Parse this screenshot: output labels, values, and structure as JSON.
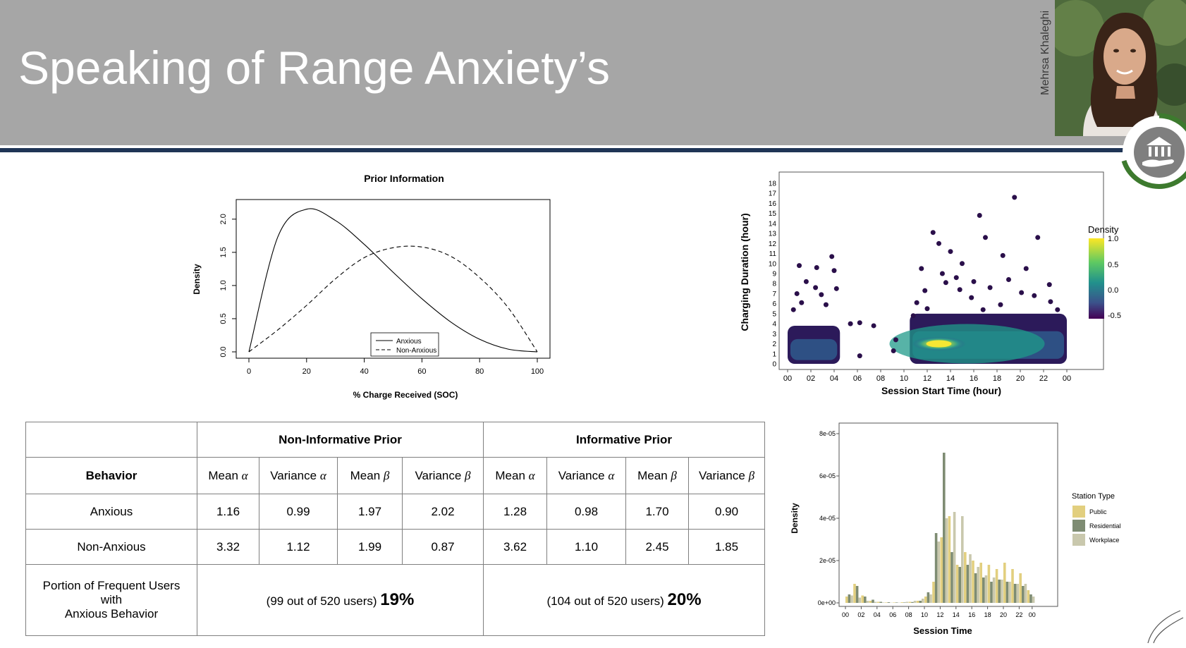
{
  "slide": {
    "title": "Speaking of Range Anxiety’s",
    "presenter_name": "Mehrsa Khaleghi"
  },
  "prior_chart": {
    "title": "Prior Information",
    "xlabel": "% Charge Received (SOC)",
    "ylabel": "Density",
    "x_ticks": [
      "0",
      "20",
      "40",
      "60",
      "80",
      "100"
    ],
    "y_ticks": [
      "0.0",
      "0.5",
      "1.0",
      "1.5",
      "2.0"
    ],
    "legend": [
      "Anxious",
      "Non-Anxious"
    ]
  },
  "scatter_chart": {
    "xlabel": "Session Start Time (hour)",
    "ylabel": "Charging Duration (hour)",
    "x_ticks": [
      "00",
      "02",
      "04",
      "06",
      "08",
      "10",
      "12",
      "14",
      "16",
      "18",
      "20",
      "22",
      "00"
    ],
    "y_ticks": [
      "0",
      "1",
      "2",
      "3",
      "4",
      "5",
      "6",
      "7",
      "8",
      "9",
      "10",
      "11",
      "12",
      "13",
      "14",
      "15",
      "16",
      "17",
      "18"
    ],
    "legend_title": "Density",
    "legend_ticks": [
      "1.0",
      "0.5",
      "0.0",
      "-0.5"
    ]
  },
  "hist_chart": {
    "xlabel": "Session Time",
    "ylabel": "Density",
    "x_ticks": [
      "00",
      "02",
      "04",
      "06",
      "08",
      "10",
      "12",
      "14",
      "16",
      "18",
      "20",
      "22",
      "00"
    ],
    "y_ticks": [
      "0e+00",
      "2e-05",
      "4e-05",
      "6e-05",
      "8e-05"
    ],
    "legend_title": "Station Type",
    "legend": [
      "Public",
      "Residential",
      "Workplace"
    ],
    "colors": {
      "Public": "#e2cf7f",
      "Residential": "#7e8c73",
      "Workplace": "#c9c8ad"
    }
  },
  "chart_data": [
    {
      "type": "line",
      "x": [
        0,
        10,
        20,
        30,
        40,
        50,
        60,
        70,
        80,
        90,
        100
      ],
      "series": [
        {
          "name": "Anxious",
          "values": [
            0,
            1.73,
            2.15,
            1.98,
            1.62,
            1.2,
            0.8,
            0.45,
            0.19,
            0.04,
            0
          ]
        },
        {
          "name": "Non-Anxious",
          "values": [
            0,
            0.33,
            0.7,
            1.1,
            1.42,
            1.57,
            1.58,
            1.44,
            1.12,
            0.66,
            0
          ]
        }
      ],
      "title": "Prior Information",
      "xlabel": "% Charge Received (SOC)",
      "ylabel": "Density",
      "xlim": [
        0,
        100
      ],
      "ylim": [
        0,
        2.2
      ],
      "grid": false,
      "legend_position": "bottom-center"
    },
    {
      "type": "scatter",
      "points": [
        [
          19.5,
          16.6
        ],
        [
          16.5,
          14.8
        ],
        [
          12.5,
          13.1
        ],
        [
          17.0,
          12.6
        ],
        [
          21.5,
          12.6
        ],
        [
          14.0,
          11.2
        ],
        [
          13.0,
          12.0
        ],
        [
          18.5,
          10.8
        ],
        [
          20.5,
          9.5
        ],
        [
          15.0,
          10.0
        ],
        [
          11.5,
          9.5
        ],
        [
          1.0,
          9.8
        ],
        [
          2.5,
          9.6
        ],
        [
          4.0,
          9.3
        ],
        [
          3.8,
          10.7
        ],
        [
          14.5,
          8.6
        ],
        [
          16.0,
          8.2
        ],
        [
          19.0,
          8.4
        ],
        [
          22.5,
          7.9
        ],
        [
          13.3,
          9.0
        ],
        [
          1.6,
          8.2
        ],
        [
          2.4,
          7.6
        ],
        [
          0.8,
          7.0
        ],
        [
          2.9,
          6.9
        ],
        [
          3.3,
          5.9
        ],
        [
          1.2,
          6.1
        ],
        [
          0.5,
          5.4
        ],
        [
          4.2,
          7.5
        ],
        [
          6.2,
          4.1
        ],
        [
          7.4,
          3.8
        ],
        [
          5.4,
          4.0
        ],
        [
          9.3,
          2.4
        ],
        [
          9.1,
          1.3
        ],
        [
          6.2,
          0.8
        ],
        [
          11.1,
          6.1
        ],
        [
          11.8,
          7.3
        ],
        [
          10.8,
          4.8
        ],
        [
          17.4,
          7.6
        ],
        [
          21.2,
          6.8
        ],
        [
          23.2,
          5.4
        ],
        [
          12.0,
          5.5
        ],
        [
          15.8,
          6.6
        ],
        [
          18.3,
          5.9
        ],
        [
          20.1,
          7.1
        ],
        [
          22.6,
          6.2
        ],
        [
          14.8,
          7.4
        ],
        [
          13.6,
          8.1
        ],
        [
          16.8,
          5.4
        ]
      ],
      "density_bands": [
        {
          "x_range": [
            0,
            4.5
          ],
          "y_range": [
            0,
            3.8
          ]
        },
        {
          "x_range": [
            10.5,
            24
          ],
          "y_range": [
            0,
            5.0
          ]
        }
      ],
      "hotspot": {
        "x": 13.0,
        "y": 2.0
      },
      "xlabel": "Session Start Time (hour)",
      "ylabel": "Charging Duration (hour)",
      "xlim": [
        0,
        24
      ],
      "ylim": [
        0,
        18
      ],
      "legend_position": "right",
      "colorscale": "viridis",
      "colorbar_range": [
        -0.5,
        1.0
      ]
    },
    {
      "type": "bar",
      "categories": [
        "00",
        "01",
        "02",
        "03",
        "04",
        "05",
        "06",
        "07",
        "08",
        "09",
        "10",
        "11",
        "12",
        "13",
        "14",
        "15",
        "16",
        "17",
        "18",
        "19",
        "20",
        "21",
        "22",
        "23"
      ],
      "series": [
        {
          "name": "Public",
          "values": [
            0.3,
            0.9,
            0.35,
            0.1,
            0.05,
            0.02,
            0.02,
            0.03,
            0.05,
            0.1,
            0.3,
            1.0,
            3.1,
            4.1,
            1.8,
            2.4,
            2.0,
            1.9,
            1.8,
            1.6,
            1.9,
            1.6,
            1.4,
            0.6
          ]
        },
        {
          "name": "Residential",
          "values": [
            0.4,
            0.8,
            0.3,
            0.15,
            0.05,
            0.03,
            0.02,
            0.02,
            0.04,
            0.1,
            0.5,
            3.3,
            7.1,
            2.4,
            1.7,
            1.8,
            1.4,
            1.2,
            1.0,
            1.1,
            1.0,
            0.9,
            0.8,
            0.4
          ]
        },
        {
          "name": "Workplace",
          "values": [
            0.35,
            0.25,
            0.1,
            0.05,
            0.02,
            0.01,
            0.01,
            0.05,
            0.1,
            0.2,
            0.4,
            2.9,
            4.0,
            4.3,
            4.1,
            2.3,
            1.7,
            1.3,
            1.2,
            1.1,
            1.0,
            0.9,
            0.9,
            0.3
          ]
        }
      ],
      "value_scale": "1e-05",
      "xlabel": "Session Time",
      "ylabel": "Density",
      "ylim": [
        0,
        8
      ],
      "legend_position": "right"
    }
  ],
  "table": {
    "group_headers": [
      "Non-Informative Prior",
      "Informative Prior"
    ],
    "behavior_header": "Behavior",
    "sub_headers": [
      {
        "label": "Mean",
        "symbol": "α"
      },
      {
        "label": "Variance",
        "symbol": "α"
      },
      {
        "label": "Mean",
        "symbol": "β"
      },
      {
        "label": "Variance",
        "symbol": "β"
      },
      {
        "label": "Mean",
        "symbol": "α"
      },
      {
        "label": "Variance",
        "symbol": "α"
      },
      {
        "label": "Mean",
        "symbol": "β"
      },
      {
        "label": "Variance",
        "symbol": "β"
      }
    ],
    "rows": [
      {
        "label": "Anxious",
        "values": [
          "1.16",
          "0.99",
          "1.97",
          "2.02",
          "1.28",
          "0.98",
          "1.70",
          "0.90"
        ]
      },
      {
        "label": "Non-Anxious",
        "values": [
          "3.32",
          "1.12",
          "1.99",
          "0.87",
          "3.62",
          "1.10",
          "2.45",
          "1.85"
        ]
      }
    ],
    "portion": {
      "label_lines": [
        "Portion of Frequent Users",
        "with",
        "Anxious Behavior"
      ],
      "non_informative": {
        "detail": "(99 out of 520 users)",
        "pct": "19%"
      },
      "informative": {
        "detail": "(104 out of 520 users)",
        "pct": "20%"
      }
    }
  }
}
